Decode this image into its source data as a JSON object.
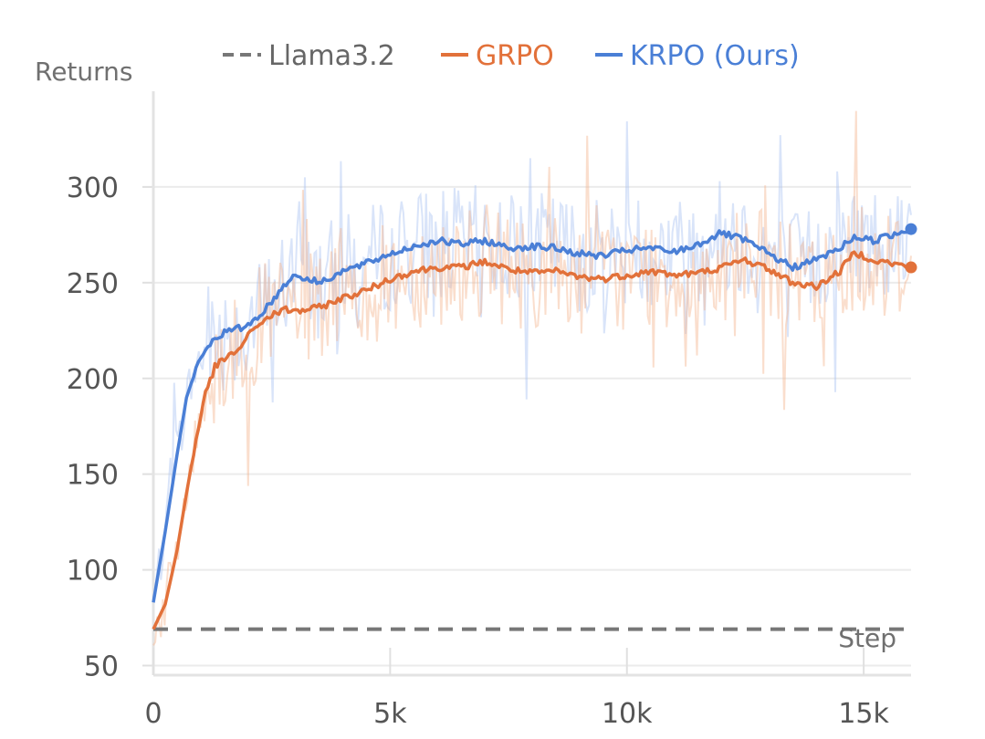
{
  "chart_data": {
    "type": "line",
    "xlabel": "Step",
    "ylabel": "Returns",
    "xlim": [
      0,
      16000
    ],
    "ylim": [
      45,
      350
    ],
    "x_ticks": [
      0,
      5000,
      10000,
      15000
    ],
    "x_tick_labels": [
      "0",
      "5k",
      "10k",
      "15k"
    ],
    "y_ticks": [
      50,
      100,
      150,
      200,
      250,
      300
    ],
    "y_tick_labels": [
      "50",
      "100",
      "150",
      "200",
      "250",
      "300"
    ],
    "grid": "y",
    "legend": "top",
    "series": [
      {
        "name": "Llama3.2",
        "color": "#777777",
        "style": "dashed",
        "x": [
          0,
          16000
        ],
        "y": [
          69,
          69
        ]
      },
      {
        "name": "GRPO",
        "color": "#e2713a",
        "style": "solid",
        "x": [
          0,
          250,
          500,
          700,
          900,
          1100,
          1300,
          1500,
          1800,
          2000,
          2200,
          2500,
          2800,
          3000,
          3500,
          4000,
          4500,
          5000,
          5500,
          6000,
          6500,
          7000,
          7500,
          8000,
          8500,
          9000,
          9500,
          10000,
          10500,
          11000,
          11500,
          12000,
          12500,
          13000,
          13500,
          14000,
          14500,
          14800,
          15200,
          15600,
          16000
        ],
        "y": [
          69,
          82,
          110,
          140,
          168,
          192,
          206,
          210,
          215,
          222,
          228,
          233,
          236,
          235,
          237,
          242,
          246,
          252,
          256,
          258,
          258,
          261,
          257,
          255,
          256,
          253,
          252,
          254,
          256,
          254,
          255,
          258,
          262,
          257,
          250,
          248,
          256,
          266,
          262,
          260,
          258
        ]
      },
      {
        "name": "KRPO (Ours)",
        "color": "#4a7fd6",
        "style": "solid",
        "x": [
          0,
          250,
          500,
          700,
          900,
          1100,
          1300,
          1500,
          1800,
          2000,
          2200,
          2500,
          2800,
          3000,
          3500,
          4000,
          4500,
          5000,
          5500,
          6000,
          6500,
          7000,
          7500,
          8000,
          8500,
          9000,
          9500,
          10000,
          10500,
          11000,
          11500,
          12000,
          12500,
          13000,
          13500,
          14000,
          14500,
          14800,
          15200,
          15600,
          16000
        ],
        "y": [
          83,
          120,
          160,
          190,
          205,
          215,
          221,
          224,
          226,
          228,
          232,
          240,
          250,
          254,
          250,
          256,
          260,
          265,
          269,
          272,
          270,
          272,
          268,
          269,
          268,
          265,
          264,
          267,
          268,
          266,
          270,
          276,
          272,
          265,
          258,
          262,
          268,
          274,
          272,
          275,
          278
        ]
      }
    ]
  }
}
